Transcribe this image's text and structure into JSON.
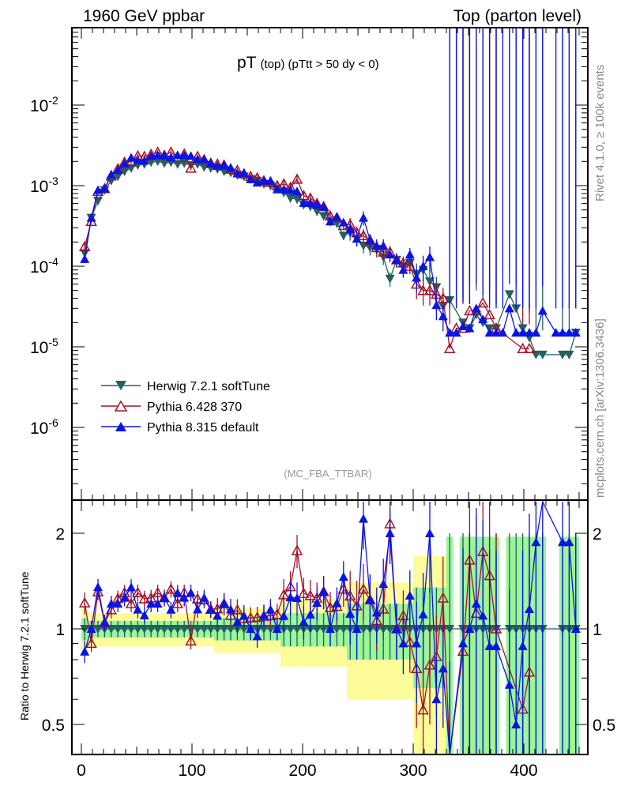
{
  "header": {
    "left": "1960 GeV ppbar",
    "right": "Top (parton level)"
  },
  "side_labels": {
    "rivet": "Rivet 4.1.0, ≥ 100k events",
    "mcplots": "mcplots.cern.ch [arXiv:1306.3436]"
  },
  "analysis_tag": "(MC_FBA_TTBAR)",
  "chart_data": {
    "type": "line",
    "title_main": "pT",
    "title_sub": "(top) (pTtt > 50 dy < 0)",
    "xlabel": "",
    "ylabel": "",
    "xlim": [
      -8.6,
      458
    ],
    "ylim": [
      1.3e-07,
      0.09
    ],
    "yscale": "log",
    "x_ticks": [
      "0",
      "100",
      "200",
      "300",
      "400"
    ],
    "y_ticks": [
      {
        "v": 0.01,
        "mant": "10",
        "exp": "-2"
      },
      {
        "v": 0.001,
        "mant": "10",
        "exp": "-3"
      },
      {
        "v": 0.0001,
        "mant": "10",
        "exp": "-4"
      },
      {
        "v": 1e-05,
        "mant": "10",
        "exp": "-5"
      },
      {
        "v": 1e-06,
        "mant": "10",
        "exp": "-6"
      }
    ],
    "legend_position": "lower-left",
    "x": [
      3,
      9,
      15,
      21,
      27,
      33,
      39,
      45,
      51,
      57,
      63,
      69,
      75,
      81,
      87,
      93,
      99,
      105,
      111,
      117,
      123,
      129,
      135,
      141,
      147,
      153,
      159,
      165,
      171,
      177,
      183,
      189,
      195,
      201,
      207,
      213,
      219,
      225,
      231,
      237,
      243,
      249,
      255,
      261,
      267,
      273,
      279,
      285,
      291,
      297,
      303,
      309,
      315,
      321,
      327,
      333,
      339,
      345,
      351,
      357,
      363,
      369,
      375,
      381,
      387,
      393,
      399,
      405,
      411,
      417,
      423,
      429,
      435,
      441,
      447
    ],
    "rel_err": [
      0.08,
      0.06,
      0.06,
      0.06,
      0.06,
      0.06,
      0.06,
      0.06,
      0.06,
      0.06,
      0.06,
      0.06,
      0.06,
      0.06,
      0.06,
      0.06,
      0.06,
      0.06,
      0.06,
      0.06,
      0.08,
      0.08,
      0.08,
      0.08,
      0.08,
      0.08,
      0.08,
      0.08,
      0.08,
      0.08,
      0.12,
      0.12,
      0.12,
      0.12,
      0.12,
      0.12,
      0.12,
      0.12,
      0.12,
      0.12,
      0.2,
      0.2,
      0.2,
      0.2,
      0.2,
      0.2,
      0.2,
      0.2,
      0.2,
      0.2,
      0.35,
      0.35,
      0.35,
      0.35,
      0.35,
      1,
      1,
      1,
      1,
      1,
      1,
      1,
      1,
      1,
      1,
      1,
      1,
      1,
      1,
      1,
      1,
      1,
      1,
      1,
      1
    ],
    "series": [
      {
        "name": "Herwig 7.2.1 softTune",
        "color": "#245f62",
        "marker": "triangle-down-filled",
        "values": [
          0.000145,
          0.0004,
          0.00065,
          0.00088,
          0.00115,
          0.0013,
          0.0015,
          0.00165,
          0.0018,
          0.00185,
          0.00195,
          0.002,
          0.0019,
          0.00195,
          0.00185,
          0.0019,
          0.0018,
          0.00185,
          0.0017,
          0.00165,
          0.0016,
          0.0015,
          0.00145,
          0.00135,
          0.0013,
          0.0012,
          0.00115,
          0.00105,
          0.001,
          0.0009,
          0.00082,
          0.0007,
          0.00068,
          0.00058,
          0.00055,
          0.00048,
          0.00042,
          0.00036,
          0.00034,
          0.00024,
          0.00026,
          0.00022,
          0.00018,
          0.00017,
          0.00016,
          0.00013,
          7e-05,
          0.00012,
          0.0001,
          0.00011,
          8e-05,
          9e-05,
          6.5e-05,
          5.5e-05,
          3.2e-05,
          3.8e-05,
          null,
          2e-05,
          1.7e-05,
          2.5e-05,
          2e-05,
          1.7e-05,
          1.7e-05,
          null,
          4.5e-05,
          3e-05,
          1.7e-05,
          1.3e-05,
          8e-06,
          8e-06,
          null,
          null,
          8e-06,
          8e-06,
          1.5e-05
        ]
      },
      {
        "name": "Pythia 6.428 370",
        "color": "#a3142a",
        "marker": "triangle-up-open",
        "values": [
          0.000175,
          0.00036,
          0.00085,
          0.00092,
          0.00132,
          0.00162,
          0.00195,
          0.00198,
          0.00234,
          0.0023,
          0.00244,
          0.0026,
          0.00238,
          0.0026,
          0.00222,
          0.00247,
          0.00165,
          0.0023,
          0.0021,
          0.0019,
          0.00185,
          0.0018,
          0.0016,
          0.00155,
          0.0014,
          0.0013,
          0.00125,
          0.00115,
          0.0011,
          0.001,
          0.00105,
          0.00095,
          0.0012,
          0.00075,
          0.0007,
          0.0006,
          0.00055,
          0.00042,
          0.0004,
          0.00032,
          0.00033,
          0.00026,
          0.00024,
          0.00021,
          0.00017,
          0.00015,
          0.00015,
          0.00012,
          0.00011,
          0.0001,
          6e-05,
          5e-05,
          5e-05,
          4.5e-05,
          4e-05,
          9.5e-06,
          1.7e-05,
          1.7e-05,
          2.8e-05,
          2.8e-05,
          3.5e-05,
          2.5e-05,
          1.7e-05,
          null,
          null,
          null,
          9.5e-06,
          9.5e-06,
          null,
          null,
          null,
          null,
          null,
          null,
          null
        ]
      },
      {
        "name": "Pythia 8.315 default",
        "color": "#0a14e6",
        "marker": "triangle-up-filled",
        "values": [
          0.000123,
          0.0004,
          0.00088,
          0.00092,
          0.00138,
          0.00156,
          0.00188,
          0.00223,
          0.00207,
          0.00204,
          0.00234,
          0.0024,
          0.00238,
          0.00224,
          0.0024,
          0.00238,
          0.00234,
          0.00213,
          0.00213,
          0.0019,
          0.00176,
          0.0018,
          0.00167,
          0.00142,
          0.00143,
          0.0012,
          0.00109,
          0.00116,
          0.00115,
          0.0009,
          0.0009,
          0.00088,
          0.00085,
          0.00061,
          0.00061,
          0.00058,
          0.00055,
          0.00036,
          0.00041,
          0.00035,
          0.00029,
          0.00022,
          0.0004,
          0.00021,
          0.00018,
          0.00018,
          0.00014,
          0.00012,
          9e-05,
          0.00014,
          7.2e-05,
          0.0001,
          0.00013,
          3.3e-05,
          2.4e-05,
          1.5e-05,
          1.5e-05,
          1.8e-05,
          1.7e-05,
          3e-05,
          2.2e-05,
          1.5e-05,
          1.5e-05,
          1.5e-05,
          3e-05,
          1.5e-05,
          1.5e-05,
          1.5e-05,
          1.5e-05,
          2.8e-05,
          null,
          1.5e-05,
          1.5e-05,
          1.5e-05,
          1.5e-05
        ]
      }
    ],
    "ratio": {
      "ylabel": "Ratio to Herwig 7.2.1 softTune",
      "reference": "Herwig 7.2.1 softTune",
      "yscale": "log",
      "ylim": [
        0.4,
        2.5
      ],
      "y_ticks": [
        {
          "v": 2,
          "label": "2"
        },
        {
          "v": 1,
          "label": "1"
        },
        {
          "v": 0.5,
          "label": "0.5"
        }
      ],
      "band_colors": {
        "inner": "#99f599",
        "outer": "#fcfc99"
      }
    }
  }
}
